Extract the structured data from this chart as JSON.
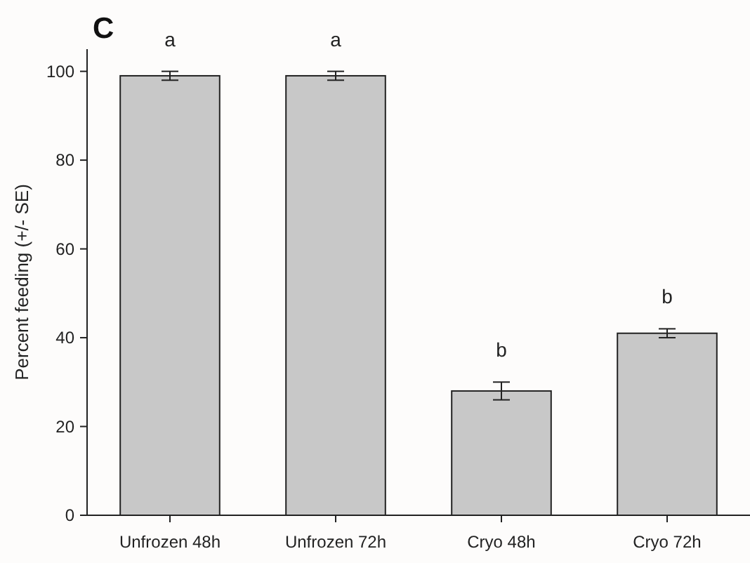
{
  "chart_data": {
    "type": "bar",
    "title": "C",
    "ylabel": "Percent feeding (+/- SE)",
    "categories": [
      "Unfrozen 48h",
      "Unfrozen 72h",
      "Cryo 48h",
      "Cryo 72h"
    ],
    "values": [
      99,
      99,
      28,
      41
    ],
    "errors": [
      1,
      1,
      2,
      1
    ],
    "color": "#c8c8c8",
    "ylim": [
      0,
      105
    ],
    "yticks": [
      0,
      20,
      40,
      60,
      80,
      100
    ],
    "grid": false,
    "annotations": [
      {
        "text": "a",
        "x": "Unfrozen 48h",
        "y": 100
      },
      {
        "text": "a",
        "x": "Unfrozen 72h",
        "y": 100
      },
      {
        "text": "b",
        "x": "Cryo 48h",
        "y": 30
      },
      {
        "text": "b",
        "x": "Cryo 72h",
        "y": 42
      }
    ]
  }
}
